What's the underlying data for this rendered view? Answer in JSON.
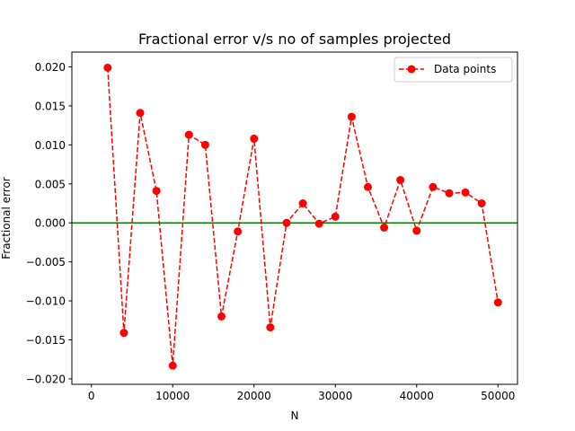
{
  "chart_data": {
    "type": "line",
    "title": "Fractional error v/s no of samples projected",
    "xlabel": "N",
    "ylabel": "Fractional error",
    "xlim": [
      -2400,
      52400
    ],
    "ylim": [
      -0.0207,
      0.0219
    ],
    "xticks": [
      0,
      10000,
      20000,
      30000,
      40000,
      50000
    ],
    "xtick_labels": [
      "0",
      "10000",
      "20000",
      "30000",
      "40000",
      "50000"
    ],
    "yticks": [
      -0.02,
      -0.015,
      -0.01,
      -0.005,
      0.0,
      0.005,
      0.01,
      0.015,
      0.02
    ],
    "ytick_labels": [
      "−0.020",
      "−0.015",
      "−0.010",
      "−0.005",
      "0.000",
      "0.005",
      "0.010",
      "0.015",
      "0.020"
    ],
    "grid": false,
    "legend_position": "top-right",
    "series": [
      {
        "name": "Data points",
        "color": "#ff0000",
        "line_style": "dashed",
        "marker": "circle",
        "x": [
          2000,
          4000,
          6000,
          8000,
          10000,
          12000,
          14000,
          16000,
          18000,
          20000,
          22000,
          24000,
          26000,
          28000,
          30000,
          32000,
          34000,
          36000,
          38000,
          40000,
          42000,
          44000,
          46000,
          48000,
          50000
        ],
        "y": [
          0.0199,
          -0.0141,
          0.0141,
          0.0041,
          -0.0183,
          0.0113,
          0.01,
          -0.012,
          -0.0011,
          0.0108,
          -0.0134,
          0.0,
          0.0025,
          -0.0001,
          0.0008,
          0.0136,
          0.0046,
          -0.0006,
          0.0055,
          -0.001,
          0.0046,
          0.0038,
          0.0039,
          0.0025,
          -0.0102
        ]
      }
    ],
    "reference_line": {
      "y": 0.0,
      "color": "#008000"
    }
  }
}
